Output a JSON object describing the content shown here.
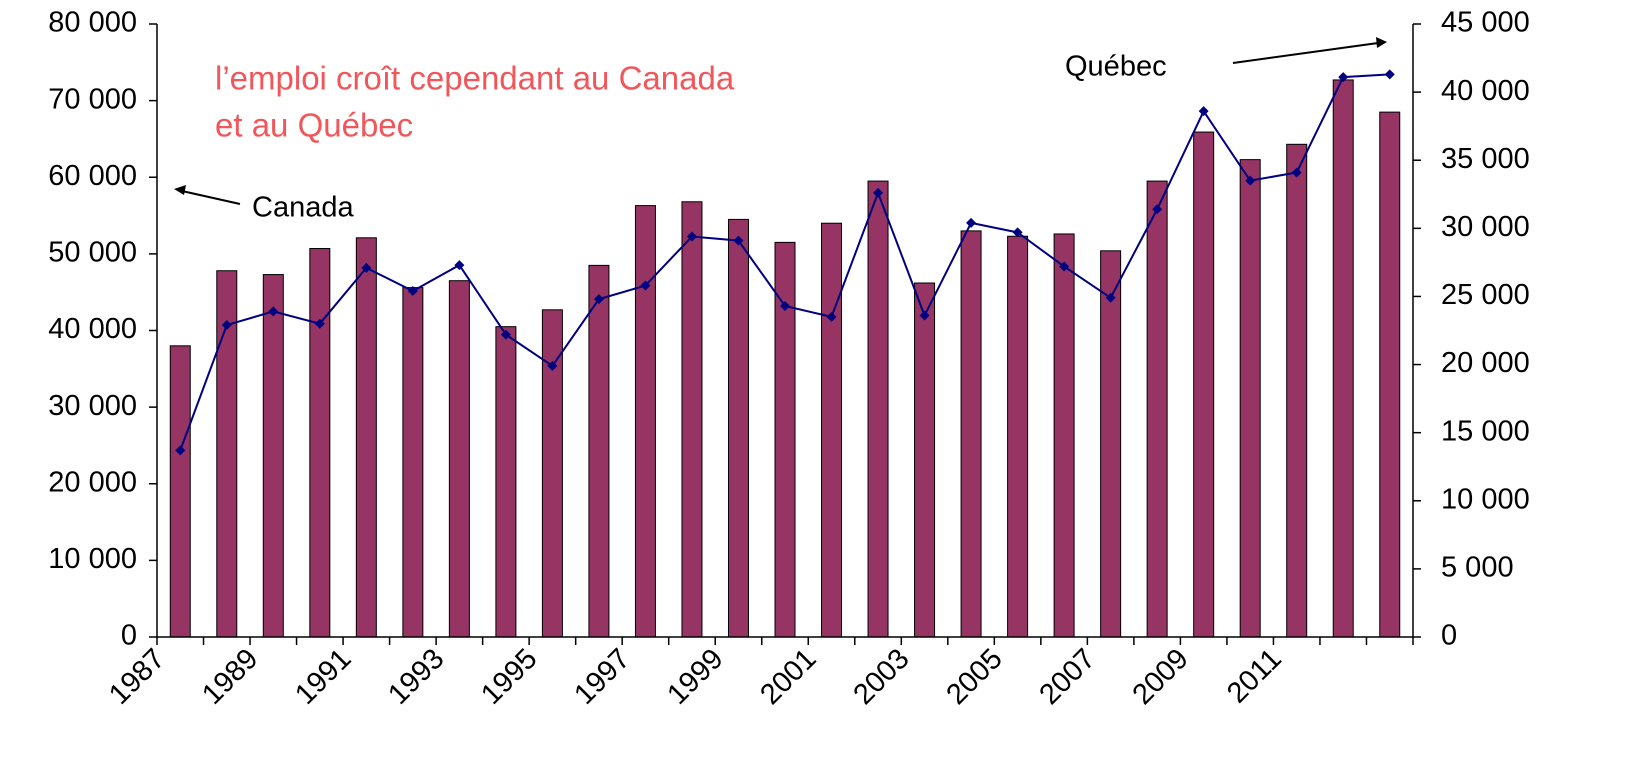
{
  "chart_data": {
    "type": "bar-line",
    "annotation_lines": [
      "l’emploi croît cependant au Canada",
      "et au Québec"
    ],
    "categories": [
      "1987",
      null,
      "1989",
      null,
      "1991",
      null,
      "1993",
      null,
      "1995",
      null,
      "1997",
      null,
      "1999",
      null,
      "2001",
      null,
      "2003",
      null,
      "2005",
      null,
      "2007",
      null,
      "2009",
      null,
      "2011",
      null,
      null
    ],
    "series": [
      {
        "name": "Canada",
        "type": "bar",
        "axis": "y",
        "color": "#963463",
        "values": [
          38000,
          47800,
          47300,
          50700,
          52100,
          45600,
          46500,
          40500,
          42700,
          48500,
          56300,
          56800,
          54500,
          51500,
          54000,
          59500,
          46200,
          53000,
          52300,
          52600,
          50400,
          59500,
          65900,
          62300,
          64300,
          72700,
          68500
        ]
      },
      {
        "name": "Québec",
        "type": "line",
        "axis": "y2",
        "color": "#000080",
        "values": [
          13700,
          22900,
          23900,
          23000,
          27100,
          25400,
          27300,
          22200,
          19900,
          24800,
          25800,
          29400,
          29100,
          24300,
          23500,
          32600,
          23600,
          30400,
          29700,
          27200,
          24900,
          31400,
          38600,
          33500,
          34100,
          41100,
          41300
        ]
      }
    ],
    "ylim": [
      0,
      80000
    ],
    "yticks": [
      0,
      {
        "value": 10000,
        "label": "10 000"
      },
      {
        "value": 20000,
        "label": "20 000"
      },
      {
        "value": 30000,
        "label": "30 000"
      },
      {
        "value": 40000,
        "label": "40 000"
      },
      {
        "value": 50000,
        "label": "50 000"
      },
      {
        "value": 60000,
        "label": "60 000"
      },
      {
        "value": 70000,
        "label": "70 000"
      },
      {
        "value": 80000,
        "label": "80 000"
      }
    ],
    "y2lim": [
      0,
      45000
    ],
    "y2ticks": [
      0,
      {
        "value": 5000,
        "label": "5 000"
      },
      {
        "value": 10000,
        "label": "10 000"
      },
      {
        "value": 15000,
        "label": "15 000"
      },
      {
        "value": 20000,
        "label": "20 000"
      },
      {
        "value": 25000,
        "label": "25 000"
      },
      {
        "value": 30000,
        "label": "30 000"
      },
      {
        "value": 35000,
        "label": "35 000"
      },
      {
        "value": 40000,
        "label": "40 000"
      },
      {
        "value": 45000,
        "label": "45 000"
      }
    ]
  }
}
